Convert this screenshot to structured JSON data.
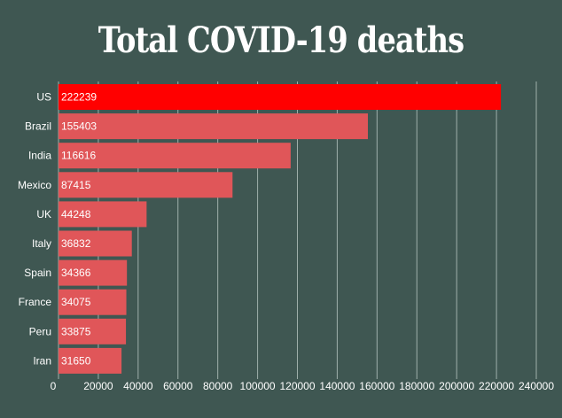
{
  "chart_data": {
    "type": "bar",
    "orientation": "horizontal",
    "title": "Total COVID-19 deaths",
    "xlabel": "",
    "ylabel": "",
    "categories": [
      "US",
      "Brazil",
      "India",
      "Mexico",
      "UK",
      "Italy",
      "Spain",
      "France",
      "Peru",
      "Iran"
    ],
    "values": [
      222239,
      155403,
      116616,
      87415,
      44248,
      36832,
      34366,
      34075,
      33875,
      31650
    ],
    "xlim": [
      0,
      240000
    ],
    "x_ticks": [
      0,
      20000,
      40000,
      60000,
      80000,
      100000,
      120000,
      140000,
      160000,
      180000,
      200000,
      220000,
      240000
    ],
    "grid": true,
    "data_labels": true,
    "colors": {
      "background": "#3f5752",
      "highlight_bar": "#ff0000",
      "bar": "#e05659",
      "grid": "#9fb0ab",
      "text": "#ffffff"
    },
    "highlight_category": "US"
  }
}
